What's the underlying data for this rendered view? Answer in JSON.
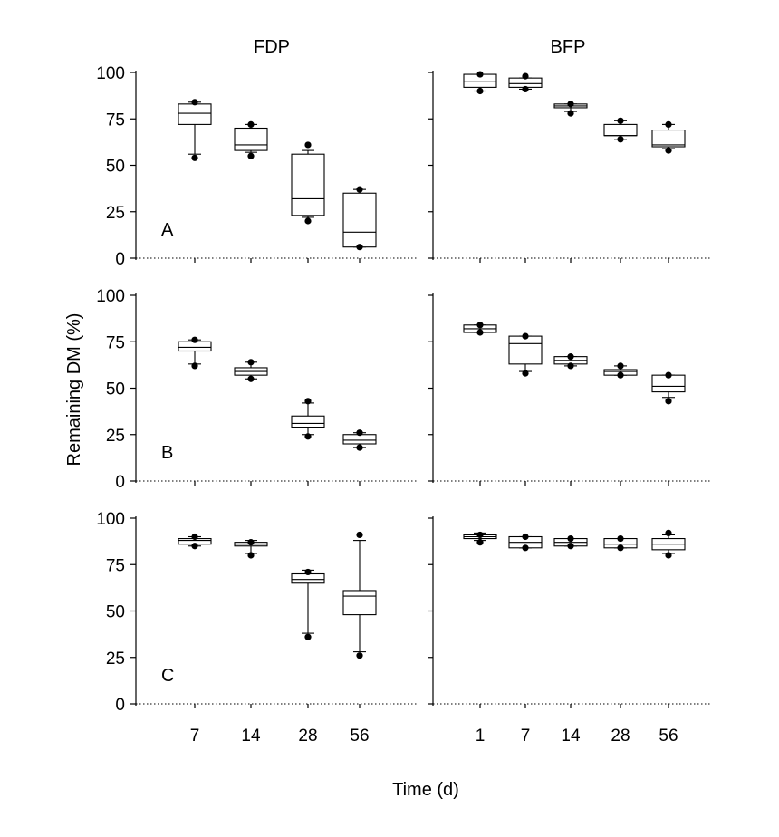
{
  "chart_data": {
    "type": "box",
    "column_titles": [
      "FDP",
      "BFP"
    ],
    "ylabel": "Remaining DM (%)",
    "xlabel": "Time (d)",
    "ylim": [
      0,
      100
    ],
    "yticks": [
      0,
      25,
      50,
      75,
      100
    ],
    "panels": [
      {
        "letter": "A",
        "column": "FDP",
        "row": 0,
        "x_categories": [
          "7",
          "14",
          "28",
          "56"
        ],
        "boxes": [
          {
            "x": "7",
            "q1": 72,
            "median": 78,
            "q3": 83,
            "whisker_low": 56,
            "whisker_high": 84,
            "outliers": [
              54,
              84
            ]
          },
          {
            "x": "14",
            "q1": 58,
            "median": 61,
            "q3": 70,
            "whisker_low": 57,
            "whisker_high": 72,
            "outliers": [
              55,
              72
            ]
          },
          {
            "x": "28",
            "q1": 23,
            "median": 32,
            "q3": 56,
            "whisker_low": 22,
            "whisker_high": 58,
            "outliers": [
              20,
              61
            ]
          },
          {
            "x": "56",
            "q1": 6,
            "median": 14,
            "q3": 35,
            "whisker_low": 6,
            "whisker_high": 37,
            "outliers": [
              6,
              37
            ]
          }
        ]
      },
      {
        "letter": "",
        "column": "BFP",
        "row": 0,
        "x_categories": [
          "1",
          "7",
          "14",
          "28",
          "56"
        ],
        "boxes": [
          {
            "x": "1",
            "q1": 92,
            "median": 95,
            "q3": 99,
            "whisker_low": 90,
            "whisker_high": 99,
            "outliers": [
              90,
              99
            ]
          },
          {
            "x": "7",
            "q1": 92,
            "median": 94,
            "q3": 97,
            "whisker_low": 91,
            "whisker_high": 97,
            "outliers": [
              91,
              98
            ]
          },
          {
            "x": "14",
            "q1": 81,
            "median": 82,
            "q3": 83,
            "whisker_low": 79,
            "whisker_high": 83,
            "outliers": [
              78,
              83
            ]
          },
          {
            "x": "28",
            "q1": 66,
            "median": 66,
            "q3": 72,
            "whisker_low": 64,
            "whisker_high": 74,
            "outliers": [
              64,
              74
            ]
          },
          {
            "x": "56",
            "q1": 60,
            "median": 61,
            "q3": 69,
            "whisker_low": 59,
            "whisker_high": 72,
            "outliers": [
              58,
              72
            ]
          }
        ]
      },
      {
        "letter": "B",
        "column": "FDP",
        "row": 1,
        "x_categories": [
          "7",
          "14",
          "28",
          "56"
        ],
        "boxes": [
          {
            "x": "7",
            "q1": 70,
            "median": 72,
            "q3": 75,
            "whisker_low": 63,
            "whisker_high": 76,
            "outliers": [
              62,
              76
            ]
          },
          {
            "x": "14",
            "q1": 57,
            "median": 59,
            "q3": 61,
            "whisker_low": 55,
            "whisker_high": 64,
            "outliers": [
              55,
              64
            ]
          },
          {
            "x": "28",
            "q1": 29,
            "median": 31,
            "q3": 35,
            "whisker_low": 25,
            "whisker_high": 42,
            "outliers": [
              24,
              43
            ]
          },
          {
            "x": "56",
            "q1": 20,
            "median": 22,
            "q3": 25,
            "whisker_low": 18,
            "whisker_high": 26,
            "outliers": [
              18,
              26
            ]
          }
        ]
      },
      {
        "letter": "",
        "column": "BFP",
        "row": 1,
        "x_categories": [
          "1",
          "7",
          "14",
          "28",
          "56"
        ],
        "boxes": [
          {
            "x": "1",
            "q1": 80,
            "median": 82,
            "q3": 84,
            "whisker_low": 80,
            "whisker_high": 84,
            "outliers": [
              80,
              84
            ]
          },
          {
            "x": "7",
            "q1": 63,
            "median": 74,
            "q3": 78,
            "whisker_low": 59,
            "whisker_high": 78,
            "outliers": [
              58,
              78
            ]
          },
          {
            "x": "14",
            "q1": 63,
            "median": 65,
            "q3": 67,
            "whisker_low": 62,
            "whisker_high": 67,
            "outliers": [
              62,
              67
            ]
          },
          {
            "x": "28",
            "q1": 57,
            "median": 59,
            "q3": 60,
            "whisker_low": 57,
            "whisker_high": 62,
            "outliers": [
              57,
              62
            ]
          },
          {
            "x": "56",
            "q1": 48,
            "median": 51,
            "q3": 57,
            "whisker_low": 45,
            "whisker_high": 57,
            "outliers": [
              43,
              57
            ]
          }
        ]
      },
      {
        "letter": "C",
        "column": "FDP",
        "row": 2,
        "x_categories": [
          "7",
          "14",
          "28",
          "56"
        ],
        "boxes": [
          {
            "x": "7",
            "q1": 86,
            "median": 88,
            "q3": 89,
            "whisker_low": 85,
            "whisker_high": 90,
            "outliers": [
              85,
              90
            ]
          },
          {
            "x": "14",
            "q1": 85,
            "median": 86,
            "q3": 87,
            "whisker_low": 81,
            "whisker_high": 88,
            "outliers": [
              80,
              87
            ]
          },
          {
            "x": "28",
            "q1": 65,
            "median": 67,
            "q3": 70,
            "whisker_low": 38,
            "whisker_high": 72,
            "outliers": [
              36,
              71
            ]
          },
          {
            "x": "56",
            "q1": 48,
            "median": 58,
            "q3": 61,
            "whisker_low": 28,
            "whisker_high": 88,
            "outliers": [
              26,
              91
            ]
          }
        ]
      },
      {
        "letter": "",
        "column": "BFP",
        "row": 2,
        "x_categories": [
          "1",
          "7",
          "14",
          "28",
          "56"
        ],
        "boxes": [
          {
            "x": "1",
            "q1": 89,
            "median": 90,
            "q3": 91,
            "whisker_low": 88,
            "whisker_high": 92,
            "outliers": [
              87,
              91
            ]
          },
          {
            "x": "7",
            "q1": 84,
            "median": 87,
            "q3": 90,
            "whisker_low": 84,
            "whisker_high": 90,
            "outliers": [
              84,
              90
            ]
          },
          {
            "x": "14",
            "q1": 85,
            "median": 87,
            "q3": 89,
            "whisker_low": 85,
            "whisker_high": 89,
            "outliers": [
              85,
              89
            ]
          },
          {
            "x": "28",
            "q1": 84,
            "median": 86,
            "q3": 89,
            "whisker_low": 84,
            "whisker_high": 89,
            "outliers": [
              84,
              89
            ]
          },
          {
            "x": "56",
            "q1": 83,
            "median": 86,
            "q3": 89,
            "whisker_low": 81,
            "whisker_high": 91,
            "outliers": [
              80,
              92
            ]
          }
        ]
      }
    ]
  }
}
